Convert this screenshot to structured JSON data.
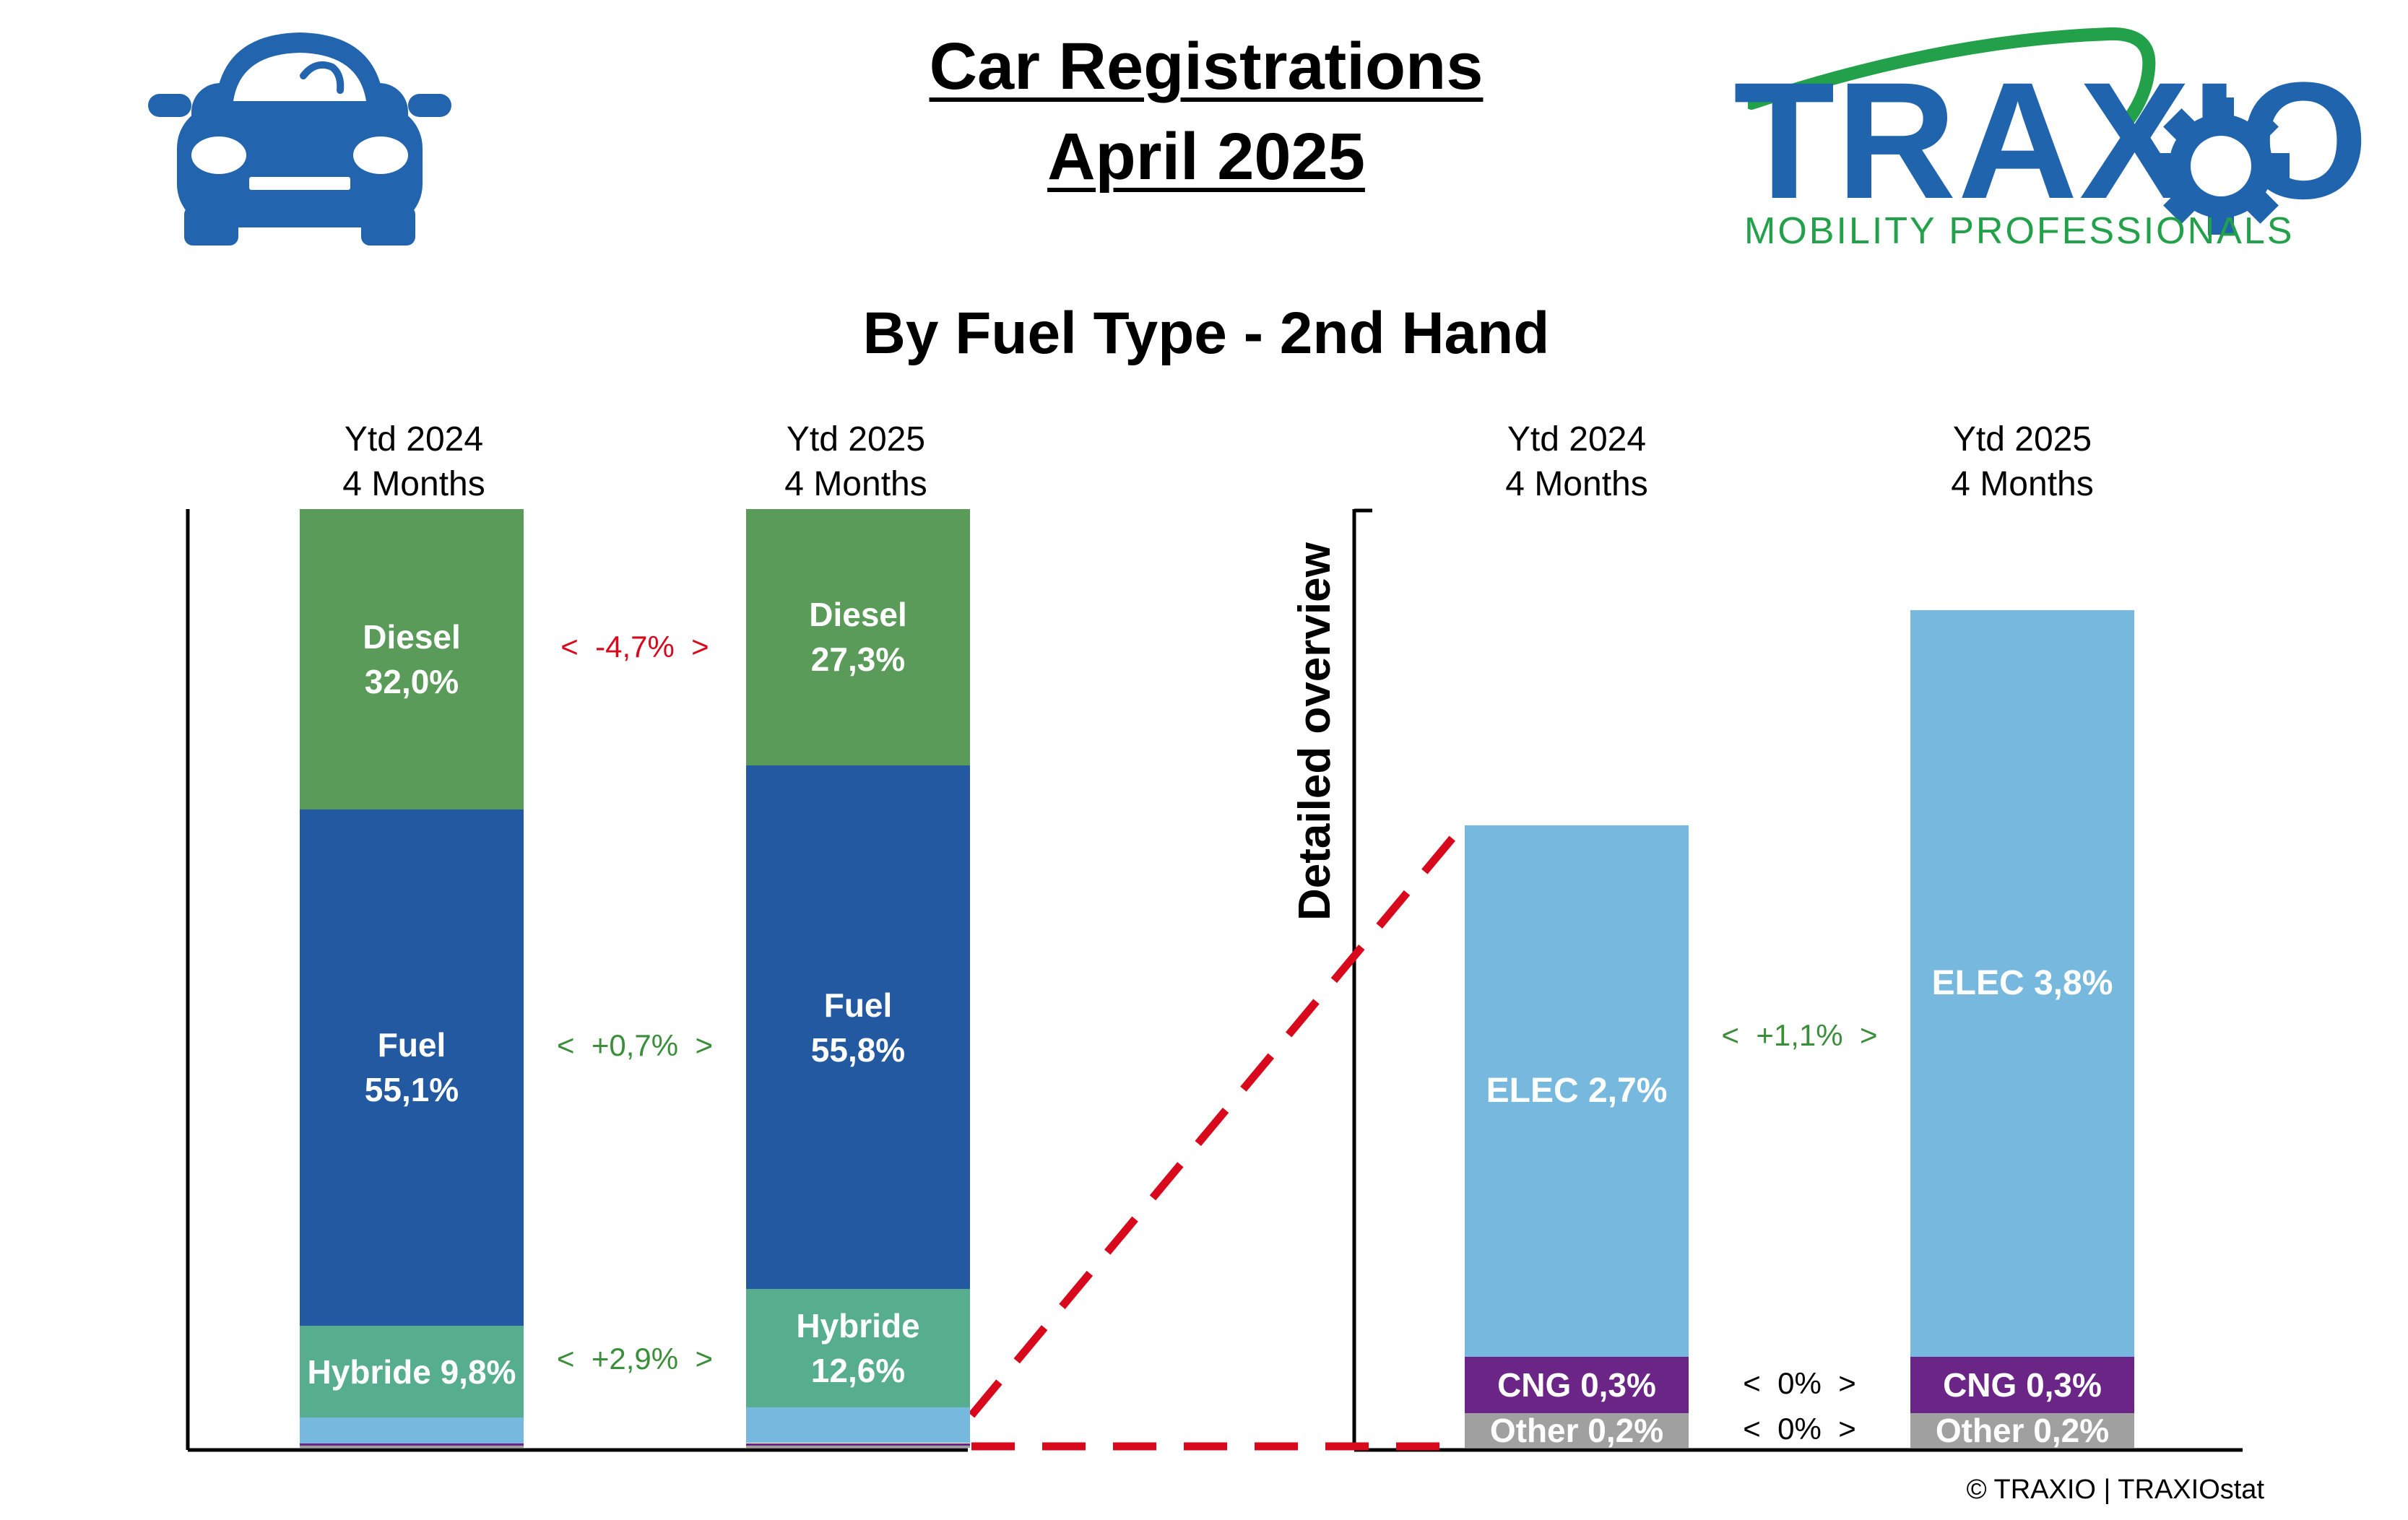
{
  "header": {
    "title_line1": "Car Registrations",
    "title_line2": "April 2025",
    "subtitle": "By Fuel Type - 2nd Hand"
  },
  "logo": {
    "wordmark": "TRAXIO",
    "tagline": "MOBILITY PROFESSIONALS",
    "colors": {
      "blue": "#1f64ad",
      "green": "#23a14a"
    }
  },
  "car_icon": {
    "name": "car-icon",
    "color": "#2264ae"
  },
  "side_label": "Detailed overview",
  "credit": "© TRAXIO | TRAXIOstat",
  "colors": {
    "diesel": "#5b9b5a",
    "fuel": "#2259a1",
    "hybride": "#56ae8f",
    "elec": "#77b9de",
    "cng": "#6a2587",
    "other": "#a0a0a0",
    "positive": "#3b8f3b",
    "negative": "#d9091d",
    "connector": "#d9091d"
  },
  "chart_data": [
    {
      "type": "bar",
      "stacked": true,
      "categories": [
        "Ytd 2024\n4 Months",
        "Ytd 2025\n4 Months"
      ],
      "category_lines": [
        [
          "Ytd 2024",
          "4 Months"
        ],
        [
          "Ytd 2025",
          "4 Months"
        ]
      ],
      "series": [
        {
          "name": "Diesel",
          "values": [
            32.0,
            27.3
          ],
          "labels": [
            [
              "Diesel",
              "32,0%"
            ],
            [
              "Diesel",
              "27,3%"
            ]
          ]
        },
        {
          "name": "Fuel",
          "values": [
            55.1,
            55.8
          ],
          "labels": [
            [
              "Fuel",
              "55,1%"
            ],
            [
              "Fuel",
              "55,8%"
            ]
          ]
        },
        {
          "name": "Hybride",
          "values": [
            9.8,
            12.6
          ],
          "labels": [
            [
              "Hybride 9,8%"
            ],
            [
              "Hybride",
              "12,6%"
            ]
          ]
        },
        {
          "name": "ELEC",
          "values": [
            2.7,
            3.8
          ],
          "labels": [
            [],
            []
          ]
        },
        {
          "name": "CNG",
          "values": [
            0.3,
            0.3
          ],
          "labels": [
            [],
            []
          ]
        },
        {
          "name": "Other",
          "values": [
            0.2,
            0.2
          ],
          "labels": [
            [],
            []
          ]
        }
      ],
      "deltas": [
        {
          "series": "Diesel",
          "text": "<  -4,7%  >",
          "sign": "negative"
        },
        {
          "series": "Fuel",
          "text": "<  +0,7%  >",
          "sign": "positive"
        },
        {
          "series": "Hybride",
          "text": "<  +2,9%  >",
          "sign": "positive"
        }
      ],
      "ylim": [
        0,
        100
      ]
    },
    {
      "type": "bar",
      "stacked": true,
      "title": "Detailed overview",
      "categories": [
        "Ytd 2024\n4 Months",
        "Ytd 2025\n4 Months"
      ],
      "category_lines": [
        [
          "Ytd 2024",
          "4 Months"
        ],
        [
          "Ytd 2025",
          "4 Months"
        ]
      ],
      "series": [
        {
          "name": "Other",
          "values": [
            0.2,
            0.2
          ],
          "labels": [
            [
              "Other 0,2%"
            ],
            [
              "Other 0,2%"
            ]
          ]
        },
        {
          "name": "CNG",
          "values": [
            0.3,
            0.3
          ],
          "labels": [
            [
              "CNG 0,3%"
            ],
            [
              "CNG 0,3%"
            ]
          ]
        },
        {
          "name": "ELEC",
          "values": [
            2.7,
            3.8
          ],
          "labels": [
            [
              "ELEC 2,7%"
            ],
            [
              "ELEC 3,8%"
            ]
          ]
        }
      ],
      "deltas": [
        {
          "series": "ELEC",
          "text": "<  +1,1%  >",
          "sign": "positive"
        },
        {
          "series": "CNG",
          "text": "<  0%  >",
          "sign": "neutral"
        },
        {
          "series": "Other",
          "text": "<  0%  >",
          "sign": "neutral"
        }
      ],
      "ylim": [
        0,
        4.5
      ]
    }
  ]
}
